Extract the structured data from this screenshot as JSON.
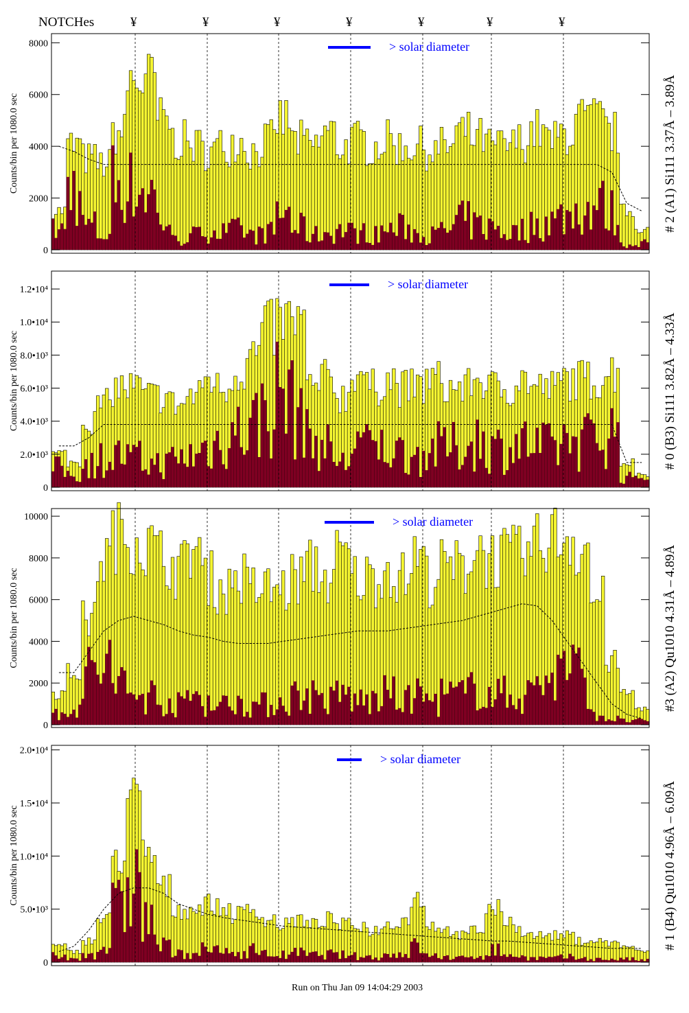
{
  "header": {
    "notches_label": "NOTCHes",
    "notch_symbol": "¥"
  },
  "footer": {
    "run_text": "Run on Thu Jan 09 14:04:29 2003"
  },
  "colors": {
    "fill_total": "#f5f531",
    "fill_flare": "#7f0022",
    "legend": "#0000ff"
  },
  "chart_data": [
    {
      "type": "bar",
      "title": "# 2 (A1) Si111  3.37Å – 3.89Å",
      "ylabel": "Counts/bin per   1080.0 sec",
      "legend": "> solar diameter",
      "ylim": [
        0,
        8300
      ],
      "yticks": [
        {
          "v": 0,
          "label": "0"
        },
        {
          "v": 2000,
          "label": "2000"
        },
        {
          "v": 4000,
          "label": "4000"
        },
        {
          "v": 6000,
          "label": "6000"
        },
        {
          "v": 8000,
          "label": "8000"
        }
      ],
      "total": [
        1500,
        4000,
        3500,
        3300,
        4500,
        6500,
        6500,
        5000,
        4200,
        4000,
        3800,
        4000,
        4200,
        3800,
        4200,
        5000,
        4200,
        4000,
        4500,
        4000,
        4200,
        4000,
        4200,
        4000,
        4000,
        3800,
        4000,
        4500,
        4300,
        4000,
        4000,
        4200,
        4600,
        4200,
        4500,
        5000,
        5000,
        4500,
        1500,
        800
      ],
      "flare": [
        800,
        2500,
        1000,
        600,
        2800,
        2500,
        2400,
        1200,
        400,
        600,
        800,
        700,
        800,
        600,
        700,
        1500,
        900,
        600,
        700,
        800,
        700,
        600,
        800,
        900,
        700,
        600,
        800,
        1200,
        1000,
        900,
        700,
        800,
        1000,
        1200,
        1400,
        1600,
        1800,
        1500,
        200,
        300
      ],
      "average": [
        4000,
        3800,
        3500,
        3300,
        3300,
        3300,
        3300,
        3300,
        3300,
        3300,
        3300,
        3300,
        3300,
        3300,
        3300,
        3300,
        3300,
        3300,
        3300,
        3300,
        3300,
        3300,
        3300,
        3300,
        3300,
        3300,
        3300,
        3300,
        3300,
        3300,
        3300,
        3300,
        3300,
        3300,
        3300,
        3300,
        3300,
        3000,
        1800,
        1500
      ]
    },
    {
      "type": "bar",
      "title": "# 0 (B3) Si111  3.82Å – 4.33Å",
      "ylabel": "Counts/bin per   1080.0 sec",
      "legend": "> solar diameter",
      "ylim": [
        0,
        13000
      ],
      "yticks": [
        {
          "v": 0,
          "label": "0"
        },
        {
          "v": 2000,
          "label": "2.0•10³"
        },
        {
          "v": 4000,
          "label": "4.0•10³"
        },
        {
          "v": 6000,
          "label": "6.0•10³"
        },
        {
          "v": 8000,
          "label": "8.0•10³"
        },
        {
          "v": 10000,
          "label": "1.0•10⁴"
        },
        {
          "v": 12000,
          "label": "1.2•10⁴"
        }
      ],
      "total": [
        2000,
        1500,
        4000,
        5000,
        6000,
        6000,
        5500,
        5500,
        5000,
        5500,
        6500,
        6000,
        7000,
        8000,
        9500,
        10000,
        10000,
        6000,
        6500,
        5500,
        7000,
        6000,
        6500,
        6000,
        6000,
        6500,
        6000,
        6000,
        6500,
        6000,
        6000,
        6500,
        6000,
        6000,
        6500,
        6500,
        6500,
        7000,
        1500,
        800
      ],
      "flare": [
        1200,
        800,
        1500,
        1800,
        2000,
        1800,
        1500,
        1500,
        1800,
        2000,
        2500,
        3000,
        3500,
        4000,
        5000,
        6000,
        5000,
        3000,
        2500,
        1500,
        3000,
        2500,
        2500,
        2200,
        2000,
        2500,
        2500,
        2500,
        3000,
        2500,
        2500,
        2800,
        2500,
        2500,
        3000,
        3000,
        3200,
        3500,
        600,
        800
      ],
      "average": [
        2500,
        2500,
        3000,
        3800,
        3800,
        3800,
        3800,
        3800,
        3800,
        3800,
        3800,
        3800,
        3800,
        3800,
        3800,
        3800,
        3800,
        3800,
        3800,
        3800,
        3800,
        3800,
        3800,
        3800,
        3800,
        3800,
        3800,
        3800,
        3800,
        3800,
        3800,
        3800,
        3800,
        3800,
        3800,
        3800,
        3800,
        3800,
        1500,
        1500
      ]
    },
    {
      "type": "bar",
      "title": "#3 (A2) Qu1010  4.31Å – 4.89Å",
      "ylabel": "Counts/bin per   1080.0 sec",
      "legend": "> solar diameter",
      "ylim": [
        0,
        10300
      ],
      "yticks": [
        {
          "v": 0,
          "label": "0"
        },
        {
          "v": 2000,
          "label": "2000"
        },
        {
          "v": 4000,
          "label": "4000"
        },
        {
          "v": 6000,
          "label": "6000"
        },
        {
          "v": 8000,
          "label": "8000"
        },
        {
          "v": 10000,
          "label": "10000"
        }
      ],
      "total": [
        1500,
        2500,
        5000,
        8000,
        9000,
        9000,
        8500,
        8000,
        7500,
        8500,
        7000,
        6500,
        7000,
        6500,
        6500,
        6500,
        7000,
        7500,
        7000,
        8000,
        7000,
        7000,
        7500,
        7000,
        8000,
        7000,
        7500,
        7500,
        8500,
        8000,
        8000,
        8000,
        8500,
        9000,
        9000,
        8500,
        6000,
        3000,
        1500,
        800
      ],
      "flare": [
        500,
        1000,
        2500,
        3000,
        2000,
        1500,
        1500,
        1200,
        1000,
        1500,
        1200,
        1000,
        1200,
        1000,
        1000,
        1200,
        1500,
        1500,
        1200,
        1500,
        1200,
        1200,
        1500,
        1200,
        1500,
        1200,
        1500,
        1500,
        2000,
        1500,
        1500,
        1500,
        2000,
        2500,
        3000,
        2500,
        500,
        300,
        200,
        200
      ],
      "average": [
        2500,
        2500,
        3500,
        4500,
        5000,
        5200,
        5000,
        4800,
        4500,
        4300,
        4200,
        4000,
        3900,
        3900,
        3900,
        4000,
        4100,
        4200,
        4300,
        4400,
        4500,
        4500,
        4500,
        4600,
        4700,
        4800,
        4900,
        5000,
        5200,
        5400,
        5600,
        5800,
        5700,
        5000,
        4000,
        3000,
        2000,
        1000,
        500,
        300
      ]
    },
    {
      "type": "bar",
      "title": "# 1 (B4) Qu1010 4.96Å – 6.09Å",
      "ylabel": "Counts/bin per   1080.0 sec",
      "legend": "> solar diameter",
      "ylim": [
        0,
        20300
      ],
      "yticks": [
        {
          "v": 0,
          "label": "0"
        },
        {
          "v": 5000,
          "label": "5.0•10³"
        },
        {
          "v": 10000,
          "label": "1.0•10⁴"
        },
        {
          "v": 15000,
          "label": "1.5•10⁴"
        },
        {
          "v": 20000,
          "label": "2.0•10⁴"
        }
      ],
      "total": [
        1500,
        1000,
        2000,
        4000,
        10000,
        15000,
        10000,
        7000,
        5000,
        5000,
        5500,
        5000,
        4500,
        5000,
        4000,
        3500,
        4000,
        3500,
        4000,
        3500,
        3500,
        3000,
        3500,
        4000,
        6000,
        3500,
        3000,
        2500,
        3000,
        5000,
        4000,
        3000,
        2500,
        2500,
        2500,
        2000,
        2000,
        1800,
        1500,
        1000
      ],
      "flare": [
        600,
        300,
        800,
        1500,
        5000,
        8000,
        4000,
        1500,
        800,
        1000,
        1200,
        1000,
        900,
        1200,
        800,
        700,
        900,
        700,
        800,
        700,
        600,
        500,
        700,
        900,
        1500,
        600,
        500,
        400,
        600,
        1200,
        800,
        500,
        400,
        400,
        500,
        400,
        300,
        300,
        300,
        200
      ],
      "average": [
        1000,
        1500,
        3000,
        5000,
        6500,
        7000,
        7000,
        6500,
        5500,
        5000,
        4500,
        4200,
        4000,
        3800,
        3600,
        3400,
        3300,
        3200,
        3100,
        3000,
        2900,
        2800,
        2700,
        2600,
        2500,
        2400,
        2300,
        2200,
        2100,
        2000,
        2000,
        1900,
        1800,
        1700,
        1600,
        1500,
        1400,
        1300,
        1300,
        1300
      ]
    }
  ]
}
